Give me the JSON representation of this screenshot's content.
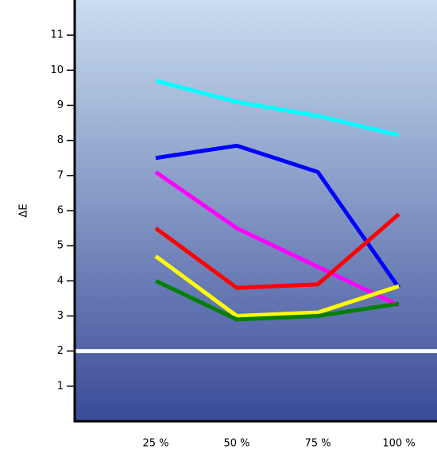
{
  "chart_data": {
    "type": "line",
    "y_label": "ΔE",
    "categories": [
      "25 %",
      "50 %",
      "75 %",
      "100 %"
    ],
    "ylim": [
      0,
      12
    ],
    "yticks": [
      1,
      2,
      3,
      4,
      5,
      6,
      7,
      8,
      9,
      10,
      11
    ],
    "reference_line": {
      "value": 2,
      "color": "#ffffff"
    },
    "series": [
      {
        "color": "#00ffff",
        "values": [
          9.7,
          9.1,
          8.7,
          8.15
        ]
      },
      {
        "color": "#0000ff",
        "values": [
          7.5,
          7.85,
          7.1,
          3.8
        ]
      },
      {
        "color": "#ff00ff",
        "values": [
          7.1,
          5.5,
          4.4,
          3.3
        ]
      },
      {
        "color": "#ff0000",
        "values": [
          5.5,
          3.8,
          3.9,
          5.9
        ]
      },
      {
        "color": "#ffff00",
        "values": [
          4.7,
          3.0,
          3.1,
          3.85
        ]
      },
      {
        "color": "#008000",
        "values": [
          4.0,
          2.9,
          3.0,
          3.35
        ]
      }
    ]
  }
}
